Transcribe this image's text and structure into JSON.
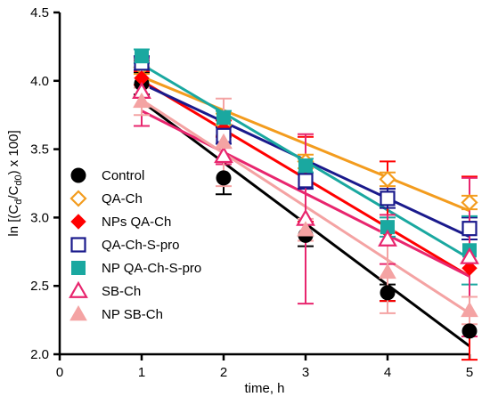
{
  "chart_data": {
    "type": "scatter",
    "title": "",
    "xlabel": "time, h",
    "ylabel_parts": [
      "ln [(C",
      "d",
      "/C",
      "d0",
      ") x 100]"
    ],
    "xlim": [
      0,
      5
    ],
    "ylim": [
      2.0,
      4.5
    ],
    "x_ticks": [
      0,
      1,
      2,
      3,
      4,
      5
    ],
    "x_tick_labels": [
      "0",
      "1",
      "2",
      "3",
      "4",
      "5"
    ],
    "y_ticks": [
      2.0,
      2.5,
      3.0,
      3.5,
      4.0,
      4.5
    ],
    "y_tick_labels": [
      "2.0",
      "2.5",
      "3.0",
      "3.5",
      "4.0",
      "4.5"
    ],
    "grid": false,
    "legend_position": "left-middle",
    "x": [
      1,
      2,
      3,
      4,
      5
    ],
    "series": [
      {
        "name": "Control",
        "color": "#000000",
        "marker": "circle-filled",
        "values": [
          3.98,
          3.29,
          2.87,
          2.45,
          2.17
        ],
        "errors": [
          0.08,
          0.12,
          0.08,
          0.06,
          0.0
        ],
        "fit": [
          3.85,
          2.06
        ]
      },
      {
        "name": "QA-Ch",
        "color": "#f39c1e",
        "marker": "diamond-open",
        "values": [
          4.1,
          3.68,
          3.41,
          3.28,
          3.11
        ],
        "errors": [
          0.05,
          0.08,
          0.05,
          0.05,
          0.05
        ],
        "fit": [
          4.03,
          3.05
        ]
      },
      {
        "name": "NPs QA-Ch",
        "color": "#ff0000",
        "marker": "diamond-filled",
        "values": [
          4.02,
          3.65,
          3.28,
          2.9,
          2.63
        ],
        "errors": [
          0.05,
          0.06,
          0.31,
          0.51,
          0.67
        ],
        "fit": [
          4.0,
          2.57
        ]
      },
      {
        "name": "QA-Ch-S-pro",
        "color": "#1a1a8c",
        "marker": "square-open",
        "values": [
          4.13,
          3.6,
          3.27,
          3.14,
          2.92
        ],
        "errors": [
          0.05,
          0.06,
          0.06,
          0.07,
          0.08
        ],
        "fit": [
          3.98,
          2.86
        ]
      },
      {
        "name": "NP QA-Ch-S-pro",
        "color": "#1aa8a0",
        "marker": "square-filled",
        "values": [
          4.18,
          3.73,
          3.38,
          2.93,
          2.76
        ],
        "errors": [
          0.05,
          0.05,
          0.05,
          0.07,
          0.25
        ],
        "fit": [
          4.12,
          2.7
        ]
      },
      {
        "name": "SB-Ch",
        "color": "#e8266e",
        "marker": "triangle-open",
        "values": [
          3.92,
          3.45,
          2.99,
          2.84,
          2.71
        ],
        "errors": [
          0.25,
          0.06,
          0.62,
          0.18,
          0.58
        ],
        "fit": [
          3.78,
          2.57
        ]
      },
      {
        "name": "NP SB-Ch",
        "color": "#f4a3a3",
        "marker": "triangle-filled",
        "values": [
          3.85,
          3.55,
          2.91,
          2.6,
          2.32
        ],
        "errors": [
          0.1,
          0.32,
          0.08,
          0.3,
          0.1
        ],
        "fit": [
          3.86,
          2.3
        ]
      }
    ]
  }
}
